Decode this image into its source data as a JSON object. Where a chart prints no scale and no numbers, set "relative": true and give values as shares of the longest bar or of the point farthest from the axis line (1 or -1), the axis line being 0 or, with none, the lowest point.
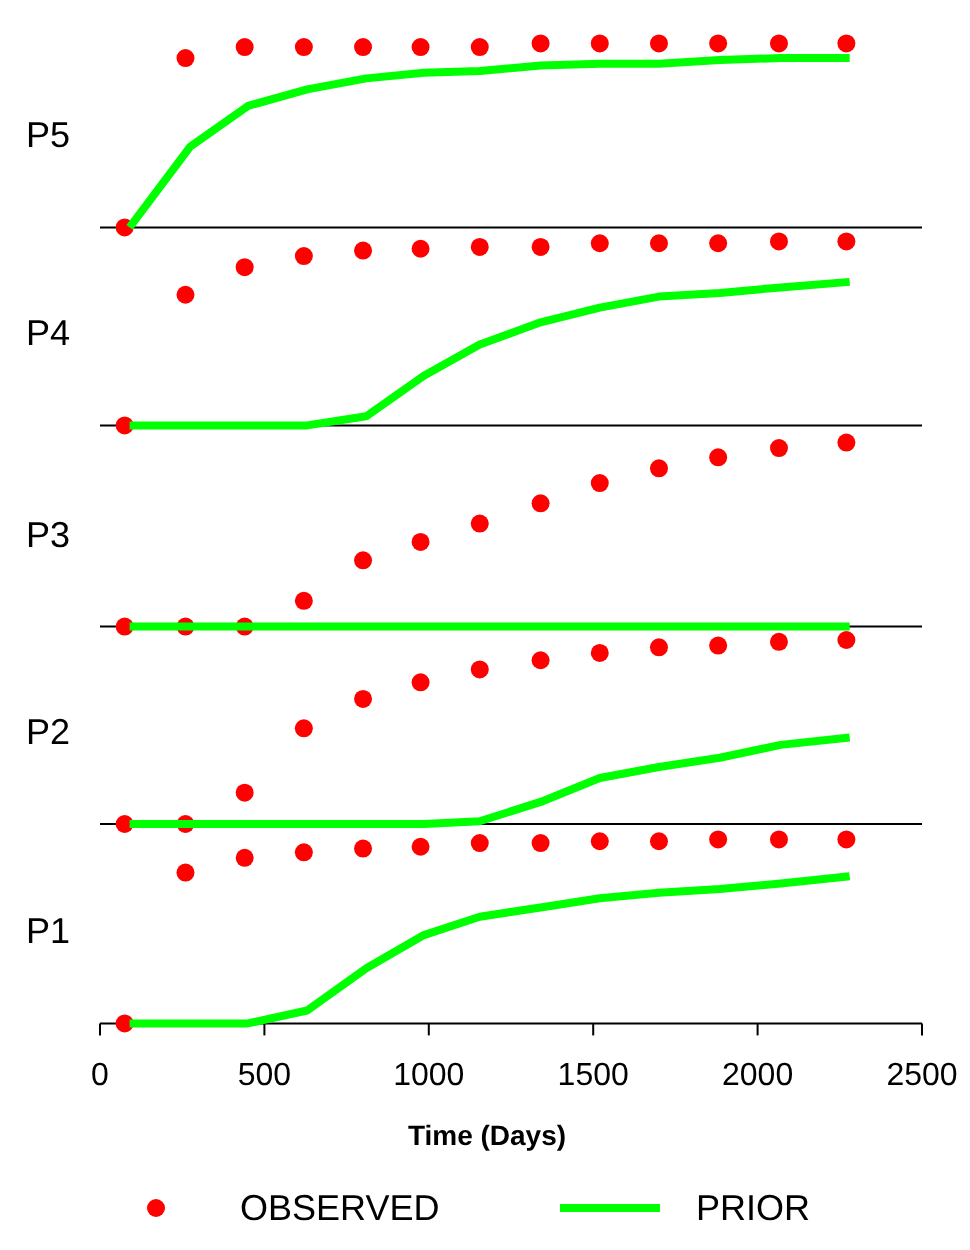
{
  "chart_data": [
    {
      "type": "line",
      "ylabel": "P5",
      "relative": true,
      "xlim": [
        0,
        2500
      ],
      "tick_labels": false,
      "series": [
        {
          "type": "scatter",
          "marker": "circle",
          "color": "#ff0000",
          "x": [
            75,
            260,
            440,
            620,
            800,
            975,
            1155,
            1340,
            1520,
            1700,
            1880,
            2065,
            2270
          ],
          "values": [
            0,
            0.92,
            0.98,
            0.98,
            0.98,
            0.98,
            0.98,
            1,
            1,
            1,
            1,
            1,
            1
          ]
        },
        {
          "color": "#00ff00",
          "x": [
            90,
            275,
            450,
            630,
            810,
            985,
            1155,
            1340,
            1520,
            1700,
            1885,
            2070,
            2280
          ],
          "values": [
            0,
            0.44,
            0.66,
            0.75,
            0.81,
            0.84,
            0.85,
            0.88,
            0.89,
            0.89,
            0.91,
            0.92,
            0.92
          ]
        }
      ]
    },
    {
      "type": "line",
      "ylabel": "P4",
      "relative": true,
      "xlim": [
        0,
        2500
      ],
      "tick_labels": false,
      "series": [
        {
          "type": "scatter",
          "marker": "circle",
          "color": "#ff0000",
          "x": [
            75,
            260,
            440,
            620,
            800,
            975,
            1155,
            1340,
            1520,
            1700,
            1880,
            2065,
            2270
          ],
          "values": [
            0,
            0.71,
            0.86,
            0.92,
            0.95,
            0.96,
            0.97,
            0.97,
            0.99,
            0.99,
            0.99,
            1,
            1
          ]
        },
        {
          "color": "#00ff00",
          "x": [
            90,
            275,
            450,
            630,
            810,
            985,
            1155,
            1340,
            1520,
            1700,
            1885,
            2070,
            2280
          ],
          "values": [
            0,
            0,
            0,
            0,
            0.05,
            0.27,
            0.44,
            0.56,
            0.64,
            0.7,
            0.72,
            0.75,
            0.78
          ]
        }
      ]
    },
    {
      "type": "line",
      "ylabel": "P3",
      "relative": true,
      "xlim": [
        0,
        2500
      ],
      "tick_labels": false,
      "series": [
        {
          "type": "scatter",
          "marker": "circle",
          "color": "#ff0000",
          "x": [
            75,
            260,
            440,
            620,
            800,
            975,
            1155,
            1340,
            1520,
            1700,
            1880,
            2065,
            2270
          ],
          "values": [
            0,
            0,
            0,
            0.14,
            0.36,
            0.46,
            0.56,
            0.67,
            0.78,
            0.86,
            0.92,
            0.97,
            1
          ]
        },
        {
          "color": "#00ff00",
          "x": [
            90,
            275,
            450,
            630,
            810,
            985,
            1155,
            1340,
            1520,
            1700,
            1885,
            2070,
            2280
          ],
          "values": [
            0,
            0,
            0,
            0,
            0,
            0,
            0,
            0,
            0,
            0,
            0,
            0,
            0
          ]
        }
      ]
    },
    {
      "type": "line",
      "ylabel": "P2",
      "relative": true,
      "xlim": [
        0,
        2500
      ],
      "tick_labels": false,
      "series": [
        {
          "type": "scatter",
          "marker": "circle",
          "color": "#ff0000",
          "x": [
            75,
            260,
            440,
            620,
            800,
            975,
            1155,
            1340,
            1520,
            1700,
            1880,
            2065,
            2270
          ],
          "values": [
            0,
            0,
            0.17,
            0.52,
            0.68,
            0.77,
            0.84,
            0.89,
            0.93,
            0.96,
            0.97,
            0.99,
            1
          ]
        },
        {
          "color": "#00ff00",
          "x": [
            90,
            275,
            450,
            630,
            810,
            985,
            1155,
            1340,
            1520,
            1700,
            1885,
            2070,
            2280
          ],
          "values": [
            0,
            0,
            0,
            0,
            0,
            0,
            0.015,
            0.12,
            0.25,
            0.31,
            0.36,
            0.43,
            0.47
          ]
        }
      ]
    },
    {
      "type": "line",
      "ylabel": "P1",
      "xlabel": "Time (Days)",
      "relative": true,
      "xlim": [
        0,
        2500
      ],
      "xticks": [
        0,
        500,
        1000,
        1500,
        2000,
        2500
      ],
      "tick_labels": "x",
      "legend": "bottom",
      "series": [
        {
          "type": "scatter",
          "marker": "circle",
          "name": "OBSERVED",
          "color": "#ff0000",
          "x": [
            75,
            260,
            440,
            620,
            800,
            975,
            1155,
            1340,
            1520,
            1700,
            1880,
            2065,
            2270
          ],
          "values": [
            0,
            0.82,
            0.9,
            0.93,
            0.95,
            0.96,
            0.98,
            0.98,
            0.99,
            0.99,
            1,
            1,
            1
          ]
        },
        {
          "name": "PRIOR",
          "color": "#00ff00",
          "x": [
            90,
            275,
            450,
            630,
            810,
            985,
            1155,
            1340,
            1520,
            1700,
            1885,
            2070,
            2280
          ],
          "values": [
            0,
            0,
            0,
            0.07,
            0.3,
            0.48,
            0.58,
            0.63,
            0.68,
            0.71,
            0.73,
            0.76,
            0.8
          ]
        }
      ]
    }
  ]
}
